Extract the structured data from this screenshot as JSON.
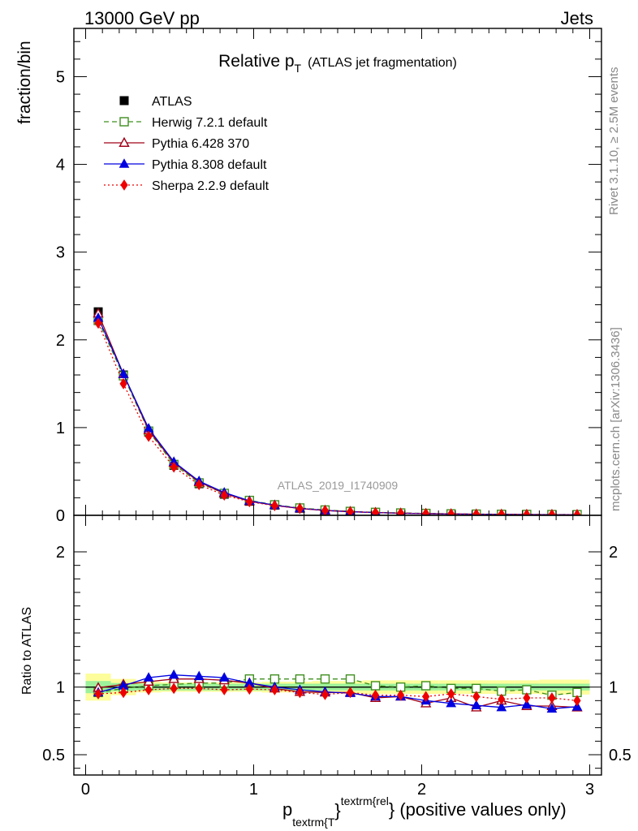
{
  "header": {
    "left": "13000 GeV pp",
    "right": "Jets"
  },
  "side_labels": {
    "rivet": "Rivet 3.1.10, ≥ 2.5M events",
    "mcplots": "mcplots.cern.ch [arXiv:1306.3436]"
  },
  "chart_data": [
    {
      "type": "line",
      "panel": "main",
      "title_main": "Relative p",
      "title_sub": "T",
      "title_extra": "(ATLAS jet fragmentation)",
      "ylabel": "fraction/bin",
      "watermark": "ATLAS_2019_I1740909",
      "xlim": [
        -0.07,
        3.07
      ],
      "ylim": [
        0,
        5.55
      ],
      "yticks": [
        0,
        1,
        2,
        3,
        4,
        5
      ],
      "yticklabels": [
        "0",
        "1",
        "2",
        "3",
        "4",
        "5"
      ],
      "x": [
        0.075,
        0.225,
        0.375,
        0.525,
        0.675,
        0.825,
        0.975,
        1.125,
        1.275,
        1.425,
        1.575,
        1.725,
        1.875,
        2.025,
        2.175,
        2.325,
        2.475,
        2.625,
        2.775,
        2.925
      ],
      "series": [
        {
          "name": "ATLAS",
          "color": "#000000",
          "marker": "square-filled",
          "line": "none",
          "values": [
            2.32,
            1.6,
            0.95,
            0.57,
            0.36,
            0.24,
            0.16,
            0.115,
            0.08,
            0.058,
            0.043,
            0.033,
            0.026,
            0.021,
            0.017,
            0.014,
            0.012,
            0.01,
            0.009,
            0.008
          ]
        },
        {
          "name": "Herwig 7.2.1 default",
          "color": "#3f8f1f",
          "marker": "square-open",
          "line": "dashed",
          "values": [
            2.22,
            1.59,
            0.96,
            0.58,
            0.37,
            0.25,
            0.17,
            0.12,
            0.084,
            0.061,
            0.045,
            0.034,
            0.027,
            0.022,
            0.017,
            0.014,
            0.012,
            0.01,
            0.009,
            0.008
          ]
        },
        {
          "name": "Pythia 6.428 370",
          "color": "#a00018",
          "marker": "triangle-open",
          "line": "solid",
          "values": [
            2.3,
            1.61,
            0.97,
            0.6,
            0.38,
            0.25,
            0.16,
            0.115,
            0.078,
            0.055,
            0.042,
            0.031,
            0.024,
            0.019,
            0.016,
            0.012,
            0.011,
            0.009,
            0.008,
            0.007
          ]
        },
        {
          "name": "Pythia 8.308 default",
          "color": "#0000e0",
          "marker": "triangle-filled",
          "line": "solid",
          "values": [
            2.25,
            1.61,
            0.99,
            0.61,
            0.39,
            0.26,
            0.165,
            0.115,
            0.079,
            0.056,
            0.041,
            0.031,
            0.024,
            0.019,
            0.015,
            0.012,
            0.01,
            0.009,
            0.0075,
            0.0068
          ]
        },
        {
          "name": "Sherpa 2.2.9 default",
          "color": "#ee0000",
          "marker": "diamond-filled",
          "line": "dotted",
          "values": [
            2.19,
            1.5,
            0.9,
            0.55,
            0.35,
            0.23,
            0.155,
            0.11,
            0.077,
            0.055,
            0.041,
            0.031,
            0.025,
            0.02,
            0.016,
            0.013,
            0.011,
            0.009,
            0.008,
            0.007
          ]
        }
      ]
    },
    {
      "type": "line",
      "panel": "ratio",
      "ylabel": "Ratio to ATLAS",
      "xlabel_main": "p",
      "xlabel_sub": "textrm{T",
      "xlabel_sup": "textrm{rel",
      "xlabel_brace1": "}",
      "xlabel_brace2": "}",
      "xlabel_suffix": " (positive values only)",
      "xlim": [
        -0.07,
        3.07
      ],
      "ylim": [
        0.35,
        2.27
      ],
      "xticks": [
        0,
        1,
        2,
        3
      ],
      "xticklabels": [
        "0",
        "1",
        "2",
        "3"
      ],
      "yticks": [
        0.5,
        1,
        2
      ],
      "yticklabels": [
        "0.5",
        "1",
        "2"
      ],
      "x": [
        0.075,
        0.225,
        0.375,
        0.525,
        0.675,
        0.825,
        0.975,
        1.125,
        1.275,
        1.425,
        1.575,
        1.725,
        1.875,
        2.025,
        2.175,
        2.325,
        2.475,
        2.625,
        2.775,
        2.925
      ],
      "band_stat": [
        0.045,
        0.03,
        0.025,
        0.025,
        0.025,
        0.025,
        0.025,
        0.025,
        0.025,
        0.025,
        0.025,
        0.025,
        0.025,
        0.025,
        0.025,
        0.025,
        0.025,
        0.025,
        0.025,
        0.025
      ],
      "band_total": [
        0.1,
        0.06,
        0.04,
        0.035,
        0.035,
        0.035,
        0.035,
        0.04,
        0.04,
        0.045,
        0.045,
        0.05,
        0.05,
        0.05,
        0.05,
        0.05,
        0.05,
        0.05,
        0.055,
        0.055
      ],
      "series": [
        {
          "name": "Herwig 7.2.1 default",
          "color": "#3f8f1f",
          "marker": "square-open",
          "line": "dashed",
          "values": [
            0.96,
            0.99,
            1.01,
            1.02,
            1.03,
            1.03,
            1.06,
            1.06,
            1.06,
            1.06,
            1.06,
            1.01,
            1.0,
            1.01,
            0.99,
            0.99,
            0.97,
            0.98,
            0.94,
            0.96
          ]
        },
        {
          "name": "Pythia 6.428 370",
          "color": "#a00018",
          "marker": "triangle-open",
          "line": "solid",
          "values": [
            0.995,
            1.02,
            1.04,
            1.06,
            1.06,
            1.05,
            1.03,
            0.99,
            0.965,
            0.96,
            0.96,
            0.92,
            0.93,
            0.88,
            0.92,
            0.85,
            0.9,
            0.86,
            0.86,
            0.85
          ]
        },
        {
          "name": "Pythia 8.308 default",
          "color": "#0000e0",
          "marker": "triangle-filled",
          "line": "solid",
          "values": [
            0.96,
            1.01,
            1.07,
            1.09,
            1.08,
            1.07,
            1.03,
            1.0,
            0.98,
            0.965,
            0.955,
            0.93,
            0.93,
            0.9,
            0.88,
            0.865,
            0.85,
            0.87,
            0.84,
            0.855
          ]
        },
        {
          "name": "Sherpa 2.2.9 default",
          "color": "#ee0000",
          "marker": "diamond-filled",
          "line": "dotted",
          "values": [
            0.95,
            0.96,
            0.98,
            0.99,
            0.99,
            0.98,
            0.985,
            0.98,
            0.96,
            0.945,
            0.96,
            0.94,
            0.94,
            0.93,
            0.95,
            0.93,
            0.91,
            0.92,
            0.92,
            0.9
          ]
        }
      ]
    }
  ]
}
